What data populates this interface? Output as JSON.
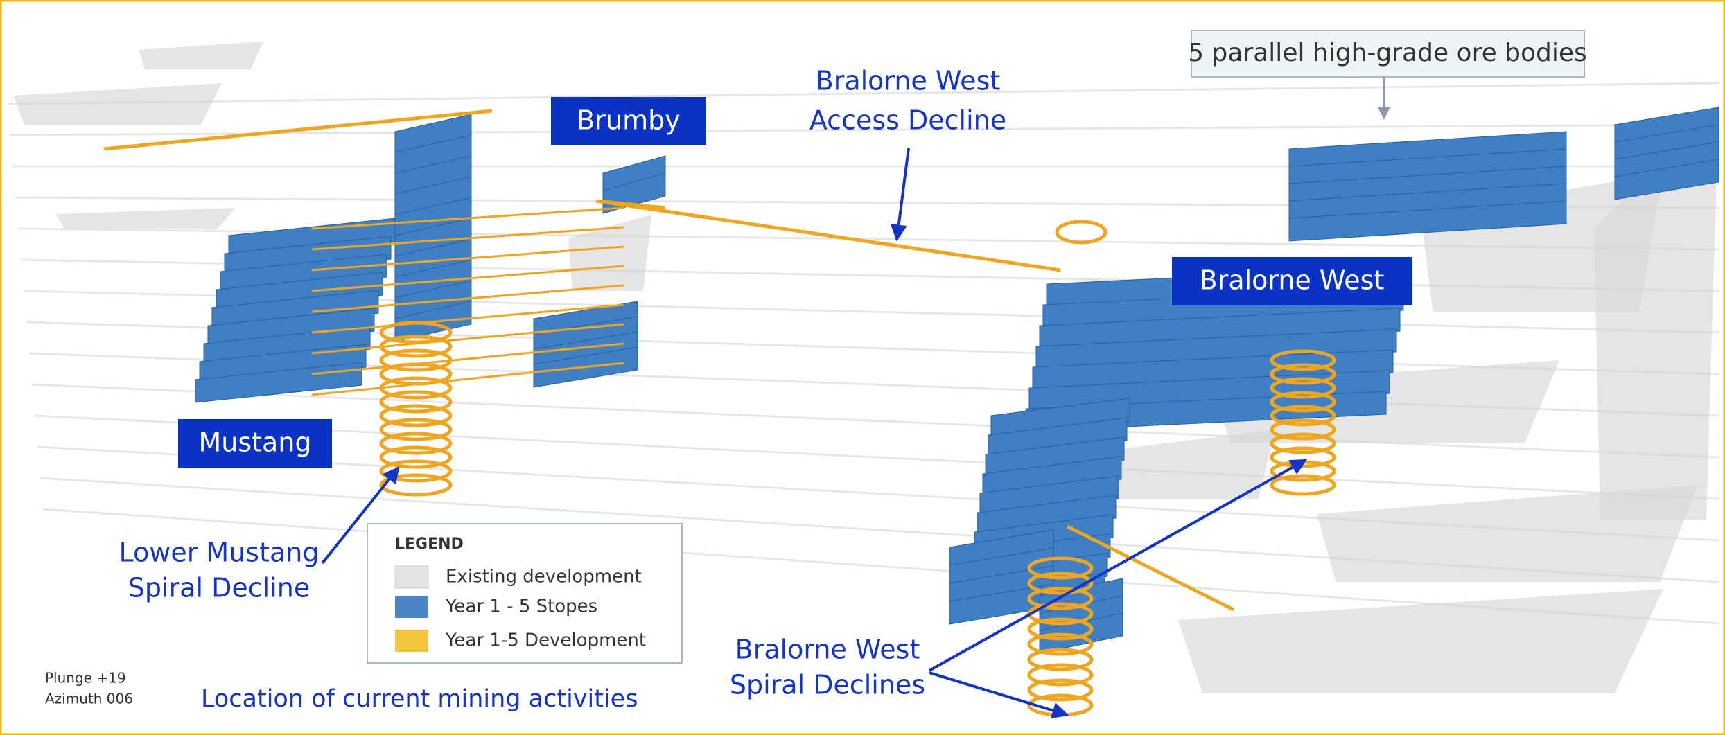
{
  "callouts": {
    "ore_bodies": "5 parallel high-grade ore bodies",
    "access_decline": [
      "Bralorne West",
      "Access Decline"
    ],
    "lower_mustang": [
      "Lower Mustang",
      "Spiral Decline"
    ],
    "spiral_declines": [
      "Bralorne West",
      "Spiral Declines"
    ]
  },
  "areas": {
    "brumby": "Brumby",
    "bralorne_west": "Bralorne West",
    "mustang": "Mustang"
  },
  "legend": {
    "title": "LEGEND",
    "items": [
      "Existing development",
      "Year 1 - 5 Stopes",
      "Year 1-5 Development"
    ]
  },
  "view": {
    "plunge": "Plunge +19",
    "azimuth": "Azimuth 006"
  },
  "caption": "Location of current mining activities"
}
